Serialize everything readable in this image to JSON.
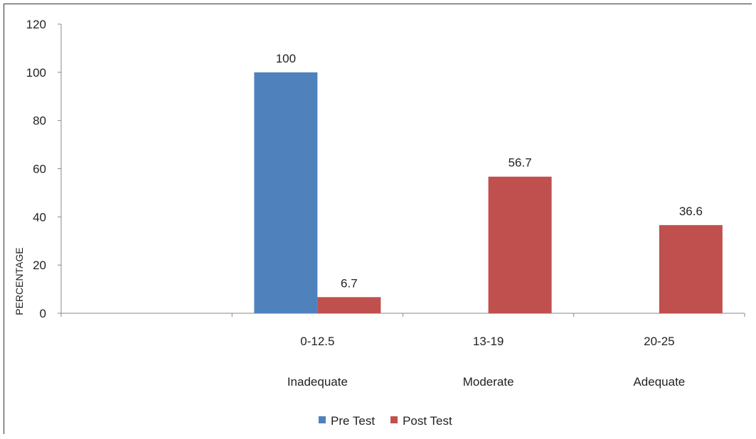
{
  "chart_data": {
    "type": "bar",
    "categories": [
      "",
      "0-12.5",
      "13-19",
      "20-25"
    ],
    "category_groups": [
      "",
      "Inadequate",
      "Moderate",
      "Adequate"
    ],
    "series": [
      {
        "name": "Pre Test",
        "color": "#4f81bd",
        "values": [
          null,
          100,
          null,
          null
        ]
      },
      {
        "name": "Post Test",
        "color": "#c0504d",
        "values": [
          null,
          6.7,
          56.7,
          36.6
        ]
      }
    ],
    "data_labels": [
      {
        "series": 0,
        "index": 1,
        "text": "100"
      },
      {
        "series": 1,
        "index": 1,
        "text": "6.7"
      },
      {
        "series": 1,
        "index": 2,
        "text": "56.7"
      },
      {
        "series": 1,
        "index": 3,
        "text": "36.6"
      }
    ],
    "ylabel": "PERCENTAGE",
    "ylim": [
      0,
      120
    ],
    "yticks": [
      0,
      20,
      40,
      60,
      80,
      100,
      120
    ],
    "grid": false,
    "legend": "bottom"
  }
}
